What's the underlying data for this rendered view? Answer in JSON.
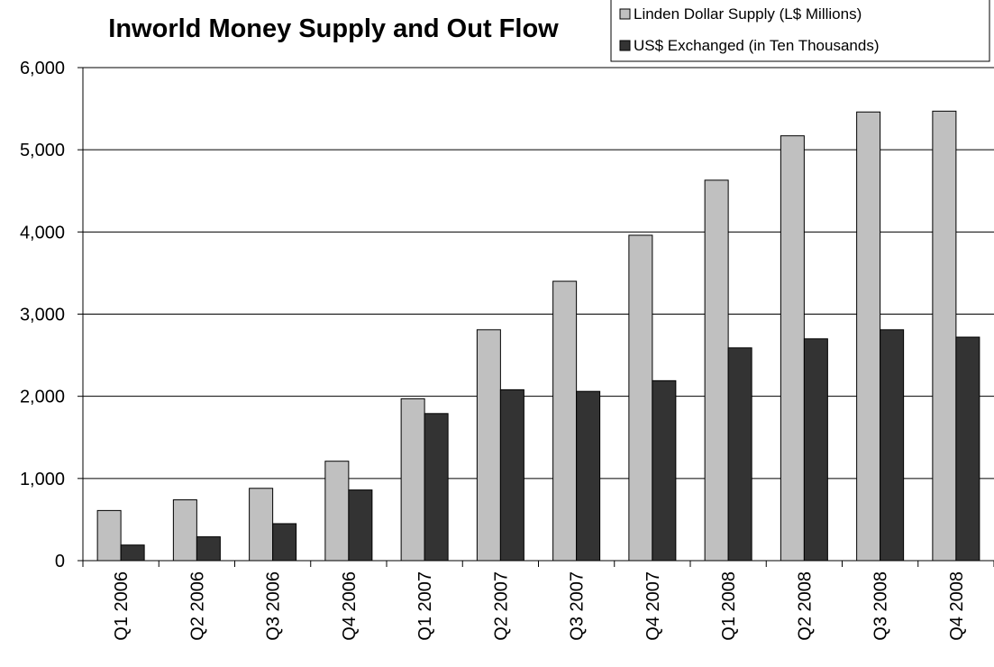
{
  "chart_data": {
    "type": "bar",
    "title": "Inworld Money Supply and Out Flow",
    "xlabel": "",
    "ylabel": "",
    "categories": [
      "Q1 2006",
      "Q2 2006",
      "Q3 2006",
      "Q4 2006",
      "Q1 2007",
      "Q2 2007",
      "Q3 2007",
      "Q4 2007",
      "Q1 2008",
      "Q2 2008",
      "Q3 2008",
      "Q4 2008"
    ],
    "series": [
      {
        "name": "Linden Dollar Supply (L$ Millions)",
        "color": "#c0c0c0",
        "values": [
          610,
          740,
          880,
          1210,
          1970,
          2810,
          3400,
          3960,
          4630,
          5170,
          5460,
          5470
        ]
      },
      {
        "name": "US$ Exchanged (in Ten Thousands)",
        "color": "#333333",
        "values": [
          190,
          290,
          450,
          860,
          1790,
          2080,
          2060,
          2190,
          2590,
          2700,
          2810,
          2720
        ]
      }
    ],
    "ylim": [
      0,
      6000
    ],
    "yticks": [
      0,
      1000,
      2000,
      3000,
      4000,
      5000,
      6000
    ],
    "ytick_labels": [
      "0",
      "1,000",
      "2,000",
      "3,000",
      "4,000",
      "5,000",
      "6,000"
    ],
    "grid": true,
    "legend_position": "top-right"
  }
}
